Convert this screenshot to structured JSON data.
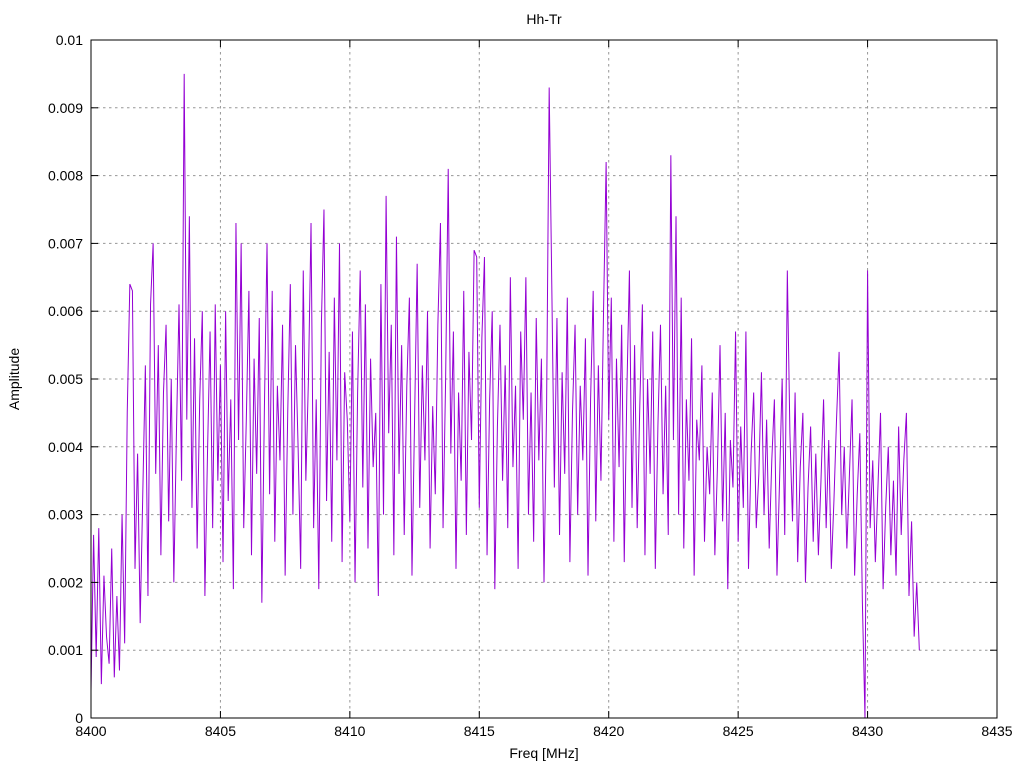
{
  "chart_data": {
    "type": "line",
    "title": "Hh-Tr",
    "xlabel": "Freq [MHz]",
    "ylabel": "Amplitude",
    "xlim": [
      8400,
      8435
    ],
    "ylim": [
      0,
      0.01
    ],
    "grid": "major-dashed",
    "legend": "none",
    "x_ticks": [
      [
        8400,
        "8400"
      ],
      [
        8405,
        "8405"
      ],
      [
        8410,
        "8410"
      ],
      [
        8415,
        "8415"
      ],
      [
        8420,
        "8420"
      ],
      [
        8425,
        "8425"
      ],
      [
        8430,
        "8430"
      ],
      [
        8435,
        "8435"
      ]
    ],
    "y_ticks": [
      [
        0,
        "0"
      ],
      [
        0.001,
        "0.001"
      ],
      [
        0.002,
        "0.002"
      ],
      [
        0.003,
        "0.003"
      ],
      [
        0.004,
        "0.004"
      ],
      [
        0.005,
        "0.005"
      ],
      [
        0.006,
        "0.006"
      ],
      [
        0.007,
        "0.007"
      ],
      [
        0.008,
        "0.008"
      ],
      [
        0.009,
        "0.009"
      ],
      [
        0.01,
        "0.01"
      ]
    ],
    "colors": {
      "line": "#9400d3",
      "grid": "#969696",
      "axis": "#000000",
      "background": "#ffffff",
      "text": "#000000"
    },
    "series": [
      {
        "name": "Hh-Tr",
        "color": "#9400d3",
        "x_start": 8400.0,
        "x_step": 0.1,
        "amplitude_unit": 0.0001,
        "values": [
          4,
          27,
          9,
          28,
          5,
          21,
          12,
          8,
          25,
          6,
          18,
          7,
          30,
          11,
          45,
          64,
          63,
          22,
          39,
          14,
          33,
          52,
          18,
          61,
          70,
          36,
          55,
          24,
          48,
          58,
          29,
          50,
          20,
          42,
          61,
          35,
          95,
          44,
          74,
          31,
          56,
          25,
          47,
          60,
          18,
          39,
          57,
          28,
          61,
          35,
          52,
          23,
          60,
          32,
          47,
          19,
          73,
          41,
          70,
          28,
          44,
          63,
          24,
          53,
          36,
          59,
          17,
          46,
          70,
          33,
          63,
          26,
          49,
          38,
          58,
          21,
          45,
          64,
          30,
          55,
          40,
          22,
          66,
          35,
          50,
          73,
          28,
          47,
          19,
          58,
          75,
          32,
          54,
          26,
          62,
          38,
          70,
          23,
          51,
          44,
          29,
          57,
          20,
          48,
          66,
          34,
          61,
          25,
          53,
          37,
          45,
          18,
          64,
          30,
          77,
          42,
          58,
          24,
          71,
          36,
          55,
          27,
          49,
          62,
          21,
          44,
          67,
          31,
          52,
          38,
          60,
          25,
          46,
          33,
          58,
          73,
          28,
          50,
          81,
          39,
          57,
          22,
          48,
          35,
          63,
          27,
          54,
          41,
          69,
          68,
          31,
          56,
          68,
          24,
          47,
          60,
          19,
          43,
          58,
          35,
          52,
          28,
          65,
          37,
          49,
          22,
          57,
          44,
          65,
          30,
          48,
          26,
          59,
          38,
          53,
          20,
          46,
          93,
          64,
          34,
          59,
          27,
          51,
          36,
          62,
          23,
          45,
          58,
          30,
          49,
          38,
          56,
          21,
          47,
          63,
          29,
          52,
          35,
          60,
          82,
          44,
          62,
          26,
          53,
          37,
          58,
          23,
          48,
          66,
          31,
          55,
          28,
          46,
          61,
          24,
          50,
          36,
          57,
          22,
          43,
          58,
          33,
          49,
          27,
          83,
          41,
          74,
          30,
          62,
          25,
          47,
          35,
          56,
          21,
          44,
          38,
          52,
          26,
          40,
          33,
          48,
          24,
          37,
          55,
          29,
          45,
          19,
          41,
          34,
          57,
          26,
          43,
          31,
          57,
          22,
          39,
          48,
          28,
          36,
          51,
          30,
          44,
          25,
          38,
          47,
          21,
          35,
          50,
          27,
          66,
          42,
          29,
          48,
          23,
          37,
          45,
          20,
          34,
          43,
          26,
          39,
          24,
          35,
          47,
          28,
          41,
          22,
          32,
          44,
          54,
          30,
          40,
          25,
          36,
          47,
          21,
          33,
          42,
          17,
          0,
          66,
          28,
          38,
          23,
          34,
          45,
          19,
          31,
          40,
          24,
          35,
          21,
          43,
          27,
          38,
          45,
          18,
          29,
          12,
          20,
          10
        ]
      }
    ]
  }
}
